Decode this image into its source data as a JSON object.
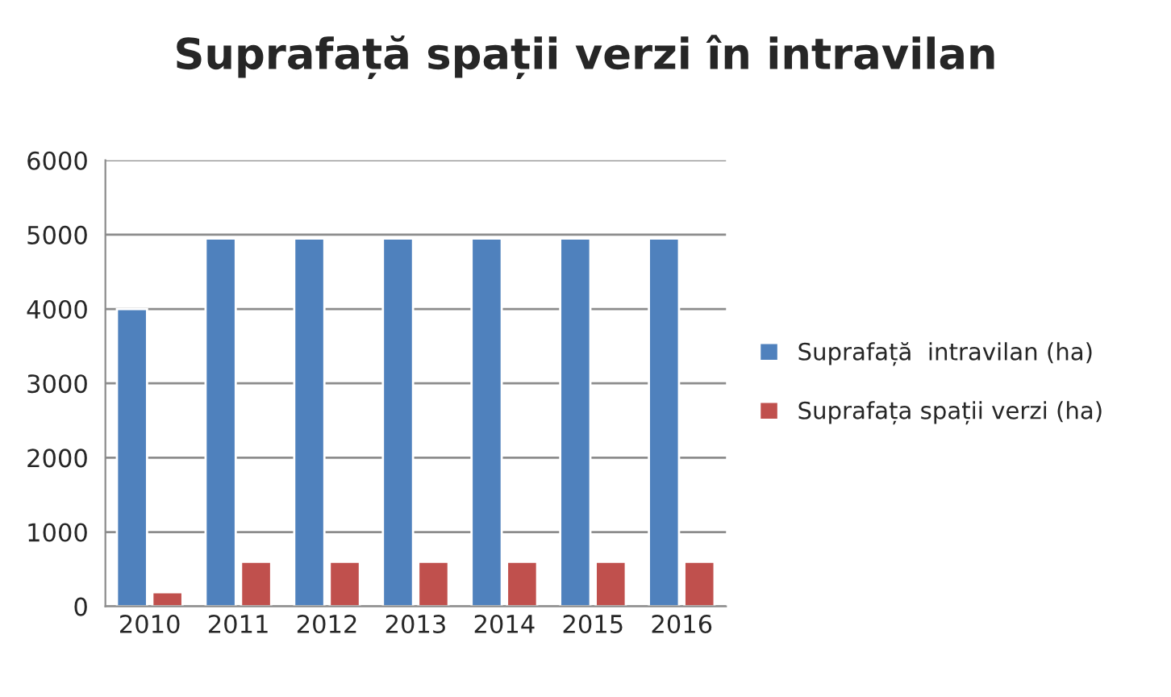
{
  "chart_data": {
    "type": "bar",
    "title": "Suprafață spații verzi în intravilan",
    "categories": [
      "2010",
      "2011",
      "2012",
      "2013",
      "2014",
      "2015",
      "2016"
    ],
    "series": [
      {
        "name": "Suprafață  intravilan (ha)",
        "color": "#4f81bd",
        "values": [
          4000,
          4950,
          4950,
          4950,
          4950,
          4950,
          4950
        ]
      },
      {
        "name": "Suprafața spații verzi (ha)",
        "color": "#c0504d",
        "values": [
          190,
          600,
          600,
          600,
          600,
          600,
          600
        ]
      }
    ],
    "ylim": [
      0,
      6000
    ],
    "yticks": [
      0,
      1000,
      2000,
      3000,
      4000,
      5000,
      6000
    ],
    "grid": "y",
    "legend": "right"
  }
}
